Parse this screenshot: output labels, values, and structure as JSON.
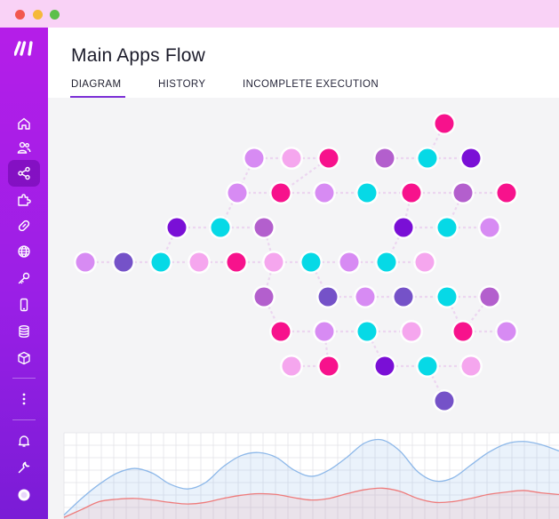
{
  "window": {
    "controls": [
      "close",
      "minimize",
      "maximize"
    ]
  },
  "sidebar": {
    "logo_icon": "make-logo-icon",
    "items": [
      {
        "icon": "home-icon",
        "active": false
      },
      {
        "icon": "team-icon",
        "active": false
      },
      {
        "icon": "share-nodes-icon",
        "active": true
      },
      {
        "icon": "puzzle-icon",
        "active": false
      },
      {
        "icon": "link-icon",
        "active": false
      },
      {
        "icon": "globe-icon",
        "active": false
      },
      {
        "icon": "key-icon",
        "active": false
      },
      {
        "icon": "mobile-icon",
        "active": false
      },
      {
        "icon": "database-icon",
        "active": false
      },
      {
        "icon": "cube-icon",
        "active": false
      },
      {
        "icon": "more-vertical-icon",
        "active": false
      },
      {
        "icon": "bell-icon",
        "active": false
      },
      {
        "icon": "wrench-icon",
        "active": false
      },
      {
        "icon": "profile-icon",
        "active": false
      }
    ]
  },
  "header": {
    "title": "Main Apps Flow",
    "tabs": [
      {
        "label": "DIAGRAM",
        "active": true
      },
      {
        "label": "HISTORY",
        "active": false
      },
      {
        "label": "INCOMPLETE EXECUTION",
        "active": false
      }
    ]
  },
  "colors": {
    "accent": "#7b2fd6",
    "sidebar_top": "#b51ee8",
    "sidebar_bottom": "#7a1cd6",
    "titlebar": "#f9d2f6",
    "node_magenta": "#f7128c",
    "node_cyan": "#06d9e6",
    "node_lilac": "#d78bf3",
    "node_pink": "#f5a6ee",
    "node_purple": "#7a0fd6",
    "node_violet": "#7552c8",
    "node_mauve": "#b35fcd",
    "chart_blue_line": "#8db8e9",
    "chart_red_line": "#ee7b7b"
  },
  "chart_data": {
    "type": "area",
    "title": "",
    "xlabel": "",
    "ylabel": "",
    "grid": true,
    "series": [
      {
        "values": [
          5,
          26,
          44,
          58,
          64,
          58,
          44,
          38,
          46,
          66,
          80,
          84,
          78,
          62,
          54,
          62,
          78,
          96,
          100,
          86,
          60,
          48,
          52,
          68,
          84,
          95,
          98,
          94,
          86
        ]
      },
      {
        "values": [
          2,
          12,
          22,
          25,
          26,
          24,
          21,
          19,
          21,
          26,
          30,
          32,
          31,
          27,
          24,
          26,
          32,
          37,
          39,
          35,
          26,
          21,
          22,
          26,
          31,
          34,
          36,
          33,
          31
        ]
      }
    ]
  }
}
